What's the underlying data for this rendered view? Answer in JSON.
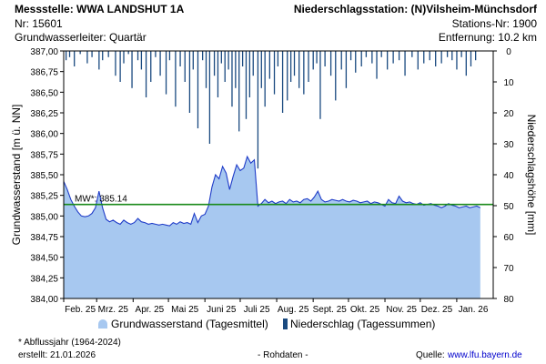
{
  "header": {
    "station_label": "Messstelle: WWA LANDSHUT 1A",
    "station_nr": "Nr: 15601",
    "aquifer": "Grundwasserleiter: Quartär",
    "precip_station": "Niederschlagsstation: (N)Vilsheim-Münchsdorf",
    "precip_station_nr": "Stations-Nr: 1900",
    "distance": "Entfernung: 10.2 km"
  },
  "footer": {
    "note": "* Abflussjahr (1964-2024)",
    "created": "erstellt:  21.01.2026",
    "rawdata": "- Rohdaten -",
    "source_label": "Quelle:",
    "source_link": "www.lfu.bayern.de"
  },
  "legend": {
    "gw_label": "Grundwasserstand (Tagesmittel)",
    "precip_label": "Niederschlag (Tagessummen)"
  },
  "colors": {
    "area_fill": "#a7c8f0",
    "area_line": "#1f3cc8",
    "bars": "#1a4a80",
    "mw_line": "#1a8a1a"
  },
  "chart_data": {
    "type": "area",
    "ylabel_left": "Grundwasserstand [m ü. NN]",
    "ylabel_right": "Niederschlagshöhe [mm]",
    "ylim_left": [
      384.0,
      387.0
    ],
    "ylim_right_inverted": [
      0,
      80
    ],
    "yticks_left": [
      "387,00",
      "386,75",
      "386,50",
      "386,25",
      "386,00",
      "385,75",
      "385,50",
      "385,25",
      "385,00",
      "384,75",
      "384,50",
      "384,25",
      "384,00"
    ],
    "yticks_right": [
      "0",
      "10",
      "20",
      "30",
      "40",
      "50",
      "60",
      "70",
      "80"
    ],
    "months": [
      "Feb. 25",
      "Mrz. 25",
      "Apr. 25",
      "Mai 25",
      "Juni 25",
      "Juli 25",
      "Aug. 25",
      "Sept. 25",
      "Okt. 25",
      "Nov. 25",
      "Dez. 25",
      "Jan. 26"
    ],
    "mw_label": "MW*: 385.14",
    "mw_value": 385.14,
    "series_gw": {
      "name": "Grundwasserstand (Tagesmittel)",
      "day": [
        0,
        3,
        6,
        9,
        12,
        15,
        18,
        21,
        24,
        27,
        30,
        33,
        36,
        39,
        42,
        45,
        48,
        51,
        54,
        57,
        60,
        63,
        66,
        69,
        72,
        75,
        78,
        81,
        84,
        87,
        90,
        93,
        96,
        99,
        102,
        105,
        108,
        111,
        114,
        117,
        120,
        123,
        126,
        129,
        132,
        135,
        138,
        141,
        144,
        147,
        150,
        153,
        156,
        159,
        162,
        165,
        168,
        171,
        174,
        177,
        180,
        183,
        186,
        189,
        192,
        195,
        198,
        201,
        204,
        207,
        210,
        213,
        216,
        219,
        222,
        225,
        228,
        231,
        234,
        237,
        240,
        243,
        246,
        249,
        252,
        255,
        258,
        261,
        264,
        267,
        270,
        273,
        276,
        279,
        282,
        285,
        288,
        291,
        294,
        297,
        300,
        303,
        306,
        309,
        312,
        315,
        318,
        321,
        324,
        327,
        330,
        333,
        336,
        339,
        342,
        345,
        348,
        351,
        354
      ],
      "value": [
        385.42,
        385.32,
        385.2,
        385.12,
        385.05,
        385.0,
        384.99,
        385.0,
        385.03,
        385.1,
        385.3,
        385.1,
        384.96,
        384.93,
        384.95,
        384.92,
        384.9,
        384.95,
        384.92,
        384.9,
        384.92,
        384.97,
        384.93,
        384.92,
        384.9,
        384.91,
        384.9,
        384.89,
        384.9,
        384.89,
        384.88,
        384.92,
        384.9,
        384.93,
        384.91,
        384.92,
        384.9,
        385.03,
        384.92,
        385.0,
        385.02,
        385.12,
        385.35,
        385.5,
        385.45,
        385.6,
        385.52,
        385.32,
        385.48,
        385.62,
        385.55,
        385.58,
        385.72,
        385.64,
        385.68,
        385.12,
        385.15,
        385.2,
        385.16,
        385.18,
        385.15,
        385.17,
        385.18,
        385.15,
        385.2,
        385.17,
        385.18,
        385.16,
        385.2,
        385.21,
        385.18,
        385.23,
        385.3,
        385.2,
        385.17,
        385.18,
        385.2,
        385.19,
        385.18,
        385.2,
        385.18,
        385.17,
        385.19,
        385.18,
        385.16,
        385.17,
        385.18,
        385.15,
        385.17,
        385.16,
        385.14,
        385.12,
        385.2,
        385.16,
        385.15,
        385.24,
        385.18,
        385.16,
        385.17,
        385.15,
        385.14,
        385.16,
        385.13,
        385.14,
        385.15,
        385.13,
        385.12,
        385.1,
        385.12,
        385.15,
        385.13,
        385.12,
        385.1,
        385.11,
        385.12,
        385.1,
        385.11,
        385.12,
        385.1
      ]
    },
    "series_precip": {
      "name": "Niederschlag (Tagessummen)",
      "day": [
        2,
        5,
        9,
        14,
        20,
        24,
        30,
        33,
        38,
        44,
        48,
        51,
        55,
        58,
        63,
        66,
        70,
        74,
        78,
        82,
        87,
        90,
        95,
        99,
        103,
        107,
        110,
        114,
        118,
        121,
        124,
        128,
        131,
        134,
        137,
        140,
        143,
        146,
        149,
        152,
        155,
        158,
        161,
        165,
        168,
        171,
        175,
        179,
        182,
        186,
        190,
        193,
        196,
        200,
        204,
        208,
        212,
        215,
        218,
        222,
        227,
        231,
        236,
        240,
        244,
        248,
        253,
        257,
        262,
        266,
        270,
        275,
        280,
        285,
        290,
        296,
        301,
        306,
        311,
        316,
        321,
        326,
        330,
        334,
        338,
        342,
        346,
        350
      ],
      "value": [
        3,
        2,
        5,
        1,
        4,
        2,
        6,
        3,
        2,
        8,
        10,
        4,
        1,
        12,
        3,
        6,
        15,
        10,
        2,
        8,
        14,
        3,
        18,
        5,
        10,
        20,
        6,
        25,
        3,
        12,
        30,
        8,
        15,
        4,
        10,
        6,
        18,
        12,
        26,
        5,
        22,
        15,
        8,
        38,
        12,
        18,
        9,
        14,
        5,
        20,
        16,
        10,
        8,
        12,
        14,
        10,
        6,
        4,
        22,
        5,
        8,
        16,
        6,
        12,
        3,
        7,
        5,
        2,
        4,
        9,
        2,
        6,
        4,
        3,
        8,
        2,
        6,
        4,
        3,
        5,
        4,
        2,
        3,
        6,
        2,
        8,
        5,
        3
      ]
    }
  }
}
